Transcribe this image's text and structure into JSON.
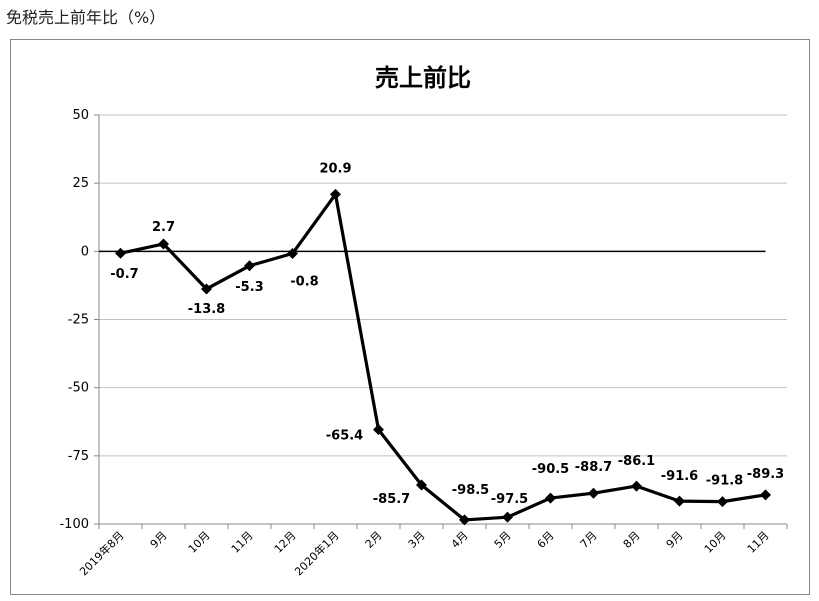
{
  "caption": "免税売上前年比（%）",
  "chart_data": {
    "type": "line",
    "title": "売上前比",
    "xlabel": "",
    "ylabel": "",
    "ylim": [
      -100,
      50
    ],
    "yticks": [
      50,
      25,
      0,
      -25,
      -50,
      -75,
      -100
    ],
    "grid": true,
    "categories": [
      "2019年8月",
      "9月",
      "10月",
      "11月",
      "12月",
      "2020年1月",
      "2月",
      "3月",
      "4月",
      "5月",
      "6月",
      "7月",
      "8月",
      "9月",
      "10月",
      "11月"
    ],
    "series": [
      {
        "values": [
          -0.7,
          2.7,
          -13.8,
          -5.3,
          -0.8,
          20.9,
          -65.4,
          -85.7,
          -98.5,
          -97.5,
          -90.5,
          -88.7,
          -86.1,
          -91.6,
          -91.8,
          -89.3
        ],
        "labels": [
          "-0.7",
          "2.7",
          "-13.8",
          "-5.3",
          "-0.8",
          "20.9",
          "-65.4",
          "-85.7",
          "-98.5",
          "-97.5",
          "-90.5",
          "-88.7",
          "-86.1",
          "-91.6",
          "-91.8",
          "-89.3"
        ]
      }
    ],
    "line_color": "#000000",
    "gridline_color": "#c0c0c0"
  }
}
